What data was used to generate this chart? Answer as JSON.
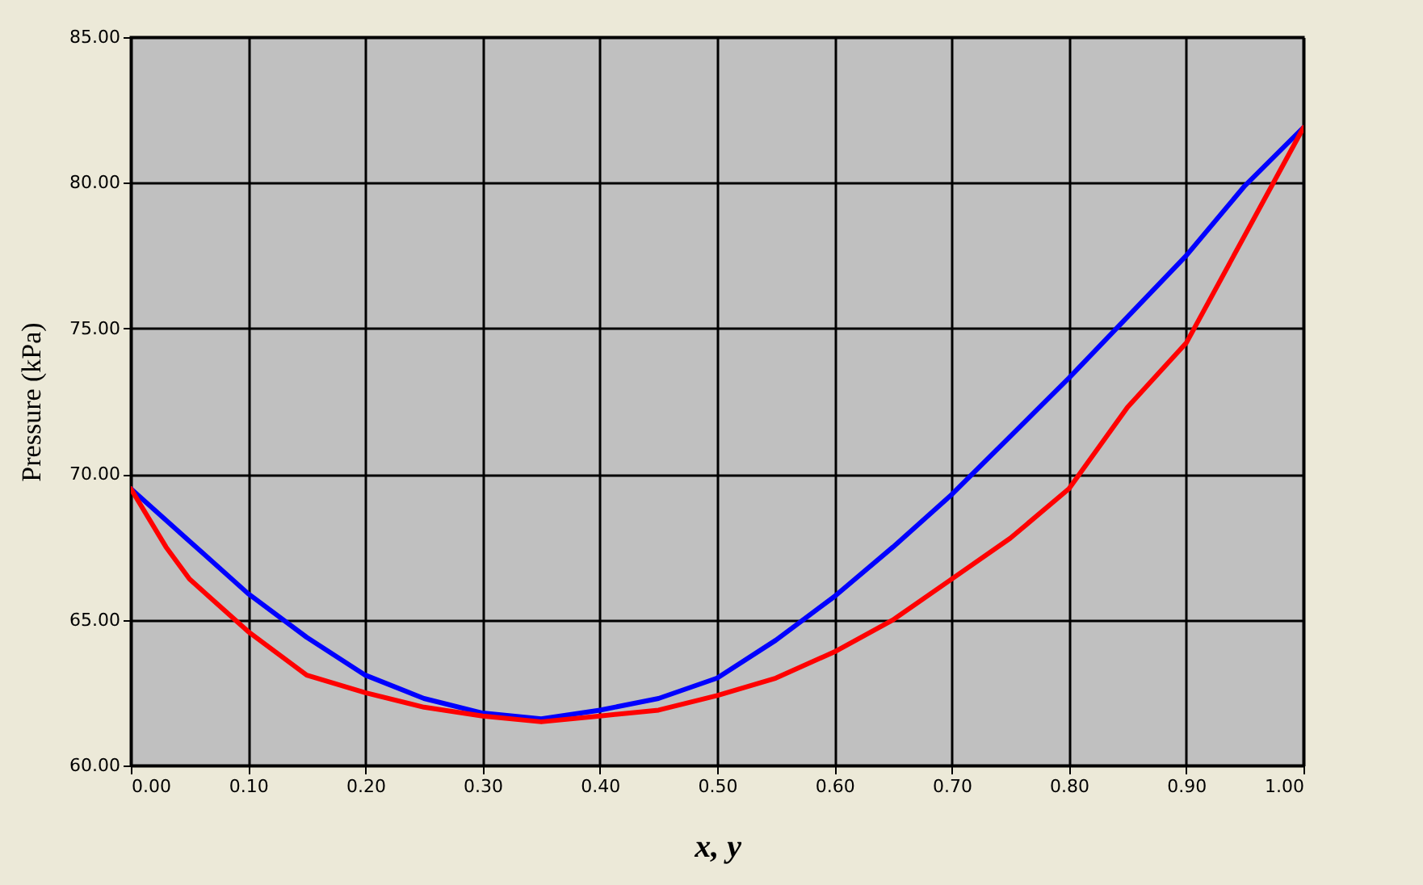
{
  "chart_data": {
    "type": "line",
    "xlabel": "x, y",
    "ylabel": "Pressure (kPa)",
    "xlim": [
      0,
      1
    ],
    "ylim": [
      60,
      85
    ],
    "xticks": [
      {
        "value": 0,
        "label": "0.00"
      },
      {
        "value": 0.1,
        "label": "0.10"
      },
      {
        "value": 0.2,
        "label": "0.20"
      },
      {
        "value": 0.3,
        "label": "0.30"
      },
      {
        "value": 0.4,
        "label": "0.40"
      },
      {
        "value": 0.5,
        "label": "0.50"
      },
      {
        "value": 0.6,
        "label": "0.60"
      },
      {
        "value": 0.7,
        "label": "0.70"
      },
      {
        "value": 0.8,
        "label": "0.80"
      },
      {
        "value": 0.9,
        "label": "0.90"
      },
      {
        "value": 1,
        "label": "1.00"
      }
    ],
    "yticks": [
      {
        "value": 60,
        "label": "60.00"
      },
      {
        "value": 65,
        "label": "65.00"
      },
      {
        "value": 70,
        "label": "70.00"
      },
      {
        "value": 75,
        "label": "75.00"
      },
      {
        "value": 80,
        "label": "80.00"
      },
      {
        "value": 85,
        "label": "85.00"
      }
    ],
    "grid": true,
    "marker": "none",
    "line_style": "solid",
    "series": [
      {
        "color": "#0000ff",
        "x": [
          0,
          0.05,
          0.1,
          0.15,
          0.2,
          0.25,
          0.3,
          0.35,
          0.4,
          0.45,
          0.5,
          0.55,
          0.6,
          0.65,
          0.7,
          0.75,
          0.8,
          0.85,
          0.9,
          0.95,
          1
        ],
        "values": [
          69.5,
          67.7,
          65.9,
          64.4,
          63.1,
          62.3,
          61.8,
          61.6,
          61.9,
          62.3,
          63.0,
          64.3,
          65.8,
          67.5,
          69.3,
          71.3,
          73.3,
          75.4,
          77.5,
          79.9,
          81.9
        ]
      },
      {
        "color": "#ff0000",
        "x": [
          0,
          0.03,
          0.05,
          0.1,
          0.15,
          0.2,
          0.25,
          0.3,
          0.35,
          0.4,
          0.45,
          0.5,
          0.55,
          0.6,
          0.65,
          0.7,
          0.75,
          0.8,
          0.85,
          0.9,
          0.95,
          1
        ],
        "values": [
          69.5,
          67.5,
          66.4,
          64.6,
          63.1,
          62.5,
          62.0,
          61.7,
          61.5,
          61.7,
          61.9,
          62.4,
          63.0,
          63.9,
          65.0,
          66.4,
          67.8,
          69.5,
          72.3,
          74.5,
          78.2,
          81.9
        ]
      }
    ]
  }
}
